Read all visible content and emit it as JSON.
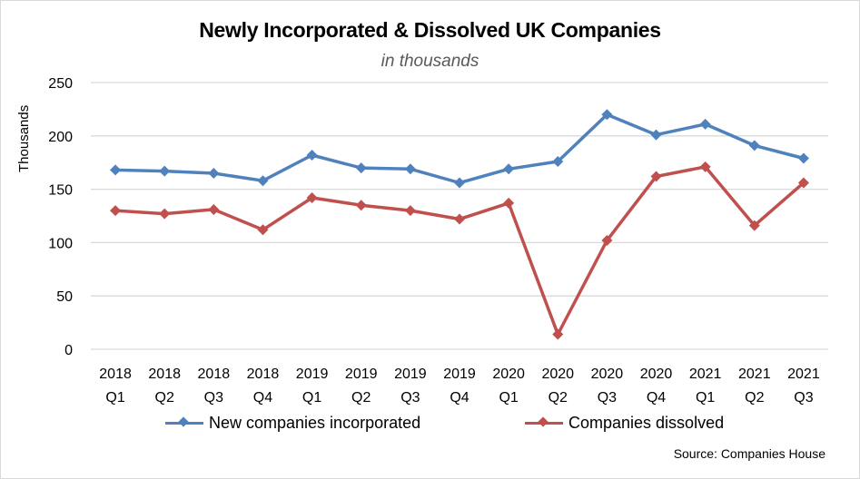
{
  "chart_data": {
    "type": "line",
    "title": "Newly Incorporated & Dissolved UK Companies",
    "subtitle": "in thousands",
    "xlabel": "",
    "ylabel": "Thousands",
    "ylim": [
      0,
      250
    ],
    "yticks": [
      0,
      50,
      100,
      150,
      200,
      250
    ],
    "grid": true,
    "legend_position": "bottom",
    "categories": [
      [
        "2018",
        "Q1"
      ],
      [
        "2018",
        "Q2"
      ],
      [
        "2018",
        "Q3"
      ],
      [
        "2018",
        "Q4"
      ],
      [
        "2019",
        "Q1"
      ],
      [
        "2019",
        "Q2"
      ],
      [
        "2019",
        "Q3"
      ],
      [
        "2019",
        "Q4"
      ],
      [
        "2020",
        "Q1"
      ],
      [
        "2020",
        "Q2"
      ],
      [
        "2020",
        "Q3"
      ],
      [
        "2020",
        "Q4"
      ],
      [
        "2021",
        "Q1"
      ],
      [
        "2021",
        "Q2"
      ],
      [
        "2021",
        "Q3"
      ]
    ],
    "series": [
      {
        "name": "New companies incorporated",
        "color": "#4f81bd",
        "marker": "diamond",
        "values": [
          168,
          167,
          165,
          158,
          182,
          170,
          169,
          156,
          169,
          176,
          220,
          201,
          211,
          191,
          179
        ]
      },
      {
        "name": "Companies dissolved",
        "color": "#c0504d",
        "marker": "diamond",
        "values": [
          130,
          127,
          131,
          112,
          142,
          135,
          130,
          122,
          137,
          14,
          102,
          162,
          171,
          116,
          156
        ]
      }
    ],
    "source": "Source: Companies House"
  }
}
